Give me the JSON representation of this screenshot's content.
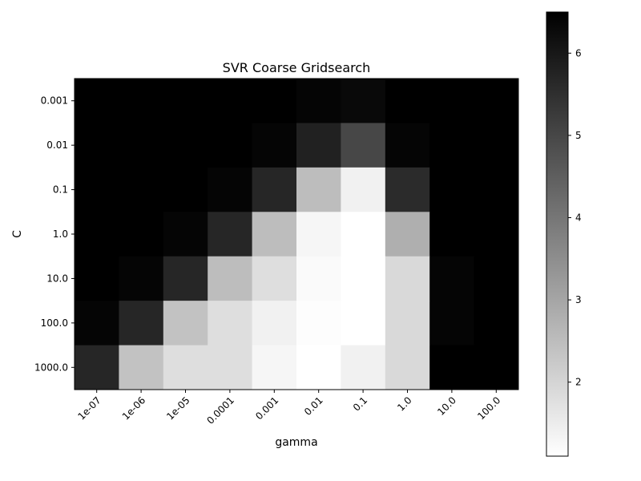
{
  "chart_data": {
    "type": "heatmap",
    "title": "SVR Coarse Gridsearch",
    "xlabel": "gamma",
    "ylabel": "C",
    "x_categories": [
      "1e-07",
      "1e-06",
      "1e-05",
      "0.0001",
      "0.001",
      "0.01",
      "0.1",
      "1.0",
      "10.0",
      "100.0"
    ],
    "y_categories": [
      "0.001",
      "0.01",
      "0.1",
      "1.0",
      "10.0",
      "100.0",
      "1000.0"
    ],
    "values": [
      [
        6.5,
        6.5,
        6.5,
        6.5,
        6.5,
        6.4,
        6.3,
        6.5,
        6.5,
        6.5
      ],
      [
        6.5,
        6.5,
        6.5,
        6.5,
        6.4,
        5.8,
        5.0,
        6.4,
        6.5,
        6.5
      ],
      [
        6.5,
        6.5,
        6.5,
        6.4,
        5.7,
        2.5,
        1.4,
        5.6,
        6.5,
        6.5
      ],
      [
        6.5,
        6.5,
        6.4,
        5.7,
        2.5,
        1.3,
        1.1,
        2.8,
        6.5,
        6.5
      ],
      [
        6.5,
        6.4,
        5.7,
        2.5,
        1.8,
        1.2,
        1.1,
        1.9,
        6.4,
        6.5
      ],
      [
        6.4,
        5.7,
        2.4,
        1.8,
        1.4,
        1.15,
        1.1,
        1.9,
        6.4,
        6.5
      ],
      [
        5.7,
        2.4,
        1.8,
        1.8,
        1.3,
        1.1,
        1.4,
        1.9,
        6.5,
        6.5
      ]
    ],
    "colormap": {
      "low_color": "#ffffff",
      "high_color": "#000000"
    },
    "colorbar": {
      "vmin": 1.1,
      "vmax": 6.5,
      "ticks": [
        2,
        3,
        4,
        5,
        6
      ],
      "tick_labels": [
        "2",
        "3",
        "4",
        "5",
        "6"
      ]
    },
    "grid": false,
    "legend": "none"
  }
}
